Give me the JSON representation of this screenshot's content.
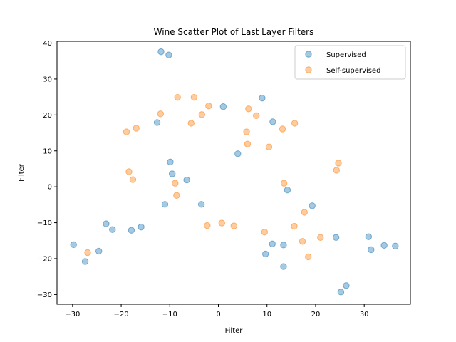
{
  "chart_data": {
    "type": "scatter",
    "title": "Wine Scatter Plot of Last Layer Filters",
    "xlabel": "Filter",
    "ylabel": "Filter",
    "xlim": [
      -33.2,
      39.5
    ],
    "ylim": [
      -32.7,
      40.5
    ],
    "xticks": [
      -30,
      -20,
      -10,
      0,
      10,
      20,
      30
    ],
    "yticks": [
      -30,
      -20,
      -10,
      0,
      10,
      20,
      30,
      40
    ],
    "grid": false,
    "legend_position": "top-right",
    "series": [
      {
        "name": "Supervised",
        "color": "#1f77b4",
        "points": [
          [
            -11.8,
            37.6
          ],
          [
            -10.2,
            36.7
          ],
          [
            -12.6,
            17.9
          ],
          [
            1.0,
            22.3
          ],
          [
            9.0,
            24.7
          ],
          [
            11.2,
            18.1
          ],
          [
            4.0,
            9.2
          ],
          [
            -9.9,
            6.9
          ],
          [
            -9.5,
            3.6
          ],
          [
            -6.5,
            1.9
          ],
          [
            14.2,
            -0.9
          ],
          [
            -11.0,
            -4.9
          ],
          [
            -3.5,
            -4.9
          ],
          [
            19.3,
            -5.3
          ],
          [
            -23.1,
            -10.3
          ],
          [
            -21.8,
            -11.9
          ],
          [
            -17.9,
            -12.1
          ],
          [
            -15.9,
            -11.2
          ],
          [
            -29.8,
            -16.1
          ],
          [
            -27.4,
            -20.8
          ],
          [
            -24.6,
            -17.9
          ],
          [
            11.1,
            -15.9
          ],
          [
            13.4,
            -16.2
          ],
          [
            9.7,
            -18.7
          ],
          [
            13.4,
            -22.2
          ],
          [
            24.2,
            -14.1
          ],
          [
            30.9,
            -13.9
          ],
          [
            31.4,
            -17.5
          ],
          [
            34.1,
            -16.3
          ],
          [
            36.4,
            -16.5
          ],
          [
            25.2,
            -29.3
          ],
          [
            26.3,
            -27.5
          ]
        ]
      },
      {
        "name": "Self-supervised",
        "color": "#ff7f0e",
        "points": [
          [
            -8.4,
            24.9
          ],
          [
            -5.0,
            24.9
          ],
          [
            -2.0,
            22.5
          ],
          [
            -11.9,
            20.3
          ],
          [
            -3.4,
            20.1
          ],
          [
            6.2,
            21.7
          ],
          [
            7.8,
            19.8
          ],
          [
            -18.9,
            15.3
          ],
          [
            -16.9,
            16.3
          ],
          [
            -5.6,
            17.7
          ],
          [
            13.2,
            16.1
          ],
          [
            15.7,
            17.7
          ],
          [
            5.8,
            15.3
          ],
          [
            6.0,
            11.9
          ],
          [
            10.4,
            11.1
          ],
          [
            -18.4,
            4.2
          ],
          [
            -17.6,
            2.0
          ],
          [
            -8.9,
            1.0
          ],
          [
            -8.6,
            -2.4
          ],
          [
            13.5,
            1.0
          ],
          [
            24.7,
            6.6
          ],
          [
            24.3,
            4.6
          ],
          [
            17.7,
            -7.1
          ],
          [
            -2.3,
            -10.8
          ],
          [
            0.7,
            -10.1
          ],
          [
            3.2,
            -10.9
          ],
          [
            9.5,
            -12.6
          ],
          [
            15.6,
            -11.0
          ],
          [
            17.3,
            -15.2
          ],
          [
            21.0,
            -14.1
          ],
          [
            18.5,
            -19.5
          ],
          [
            -26.9,
            -18.3
          ]
        ]
      }
    ]
  }
}
